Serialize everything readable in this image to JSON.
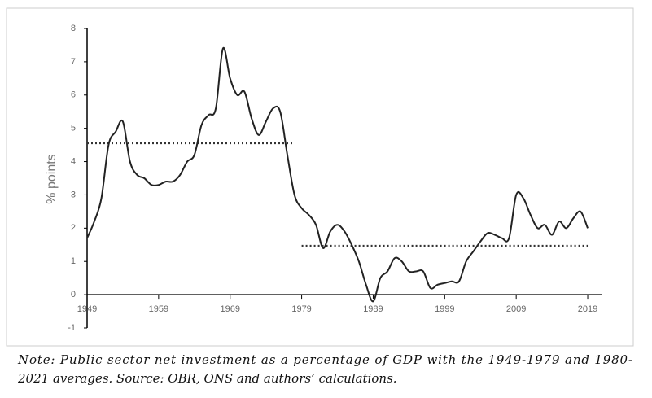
{
  "chart_data": {
    "type": "line",
    "y_label": "% points",
    "xlim": [
      1949,
      2021
    ],
    "xticks": [
      1949,
      1959,
      1969,
      1979,
      1989,
      1999,
      2009,
      2019
    ],
    "ylim": [
      -1,
      8
    ],
    "yticks": [
      -1,
      0,
      1,
      2,
      3,
      4,
      5,
      6,
      7,
      8
    ],
    "x": [
      1949,
      1950,
      1951,
      1952,
      1953,
      1954,
      1955,
      1956,
      1957,
      1958,
      1959,
      1960,
      1961,
      1962,
      1963,
      1964,
      1965,
      1966,
      1967,
      1968,
      1969,
      1970,
      1971,
      1972,
      1973,
      1974,
      1975,
      1976,
      1977,
      1978,
      1979,
      1980,
      1981,
      1982,
      1983,
      1984,
      1985,
      1986,
      1987,
      1988,
      1989,
      1990,
      1991,
      1992,
      1993,
      1994,
      1995,
      1996,
      1997,
      1998,
      1999,
      2000,
      2001,
      2002,
      2003,
      2004,
      2005,
      2006,
      2007,
      2008,
      2009,
      2010,
      2011,
      2012,
      2013,
      2014,
      2015,
      2016,
      2017,
      2018,
      2019
    ],
    "series": [
      {
        "color": "#222222",
        "values": [
          1.7,
          2.2,
          2.9,
          4.5,
          4.9,
          5.2,
          4.0,
          3.6,
          3.5,
          3.3,
          3.3,
          3.4,
          3.4,
          3.6,
          4.0,
          4.2,
          5.1,
          5.4,
          5.6,
          7.4,
          6.5,
          6.0,
          6.1,
          5.3,
          4.8,
          5.2,
          5.6,
          5.5,
          4.2,
          3.0,
          2.6,
          2.4,
          2.1,
          1.4,
          1.9,
          2.1,
          1.9,
          1.5,
          1.0,
          0.3,
          -0.2,
          0.5,
          0.7,
          1.1,
          1.0,
          0.7,
          0.7,
          0.7,
          0.2,
          0.3,
          0.35,
          0.4,
          0.4,
          1.0,
          1.3,
          1.6,
          1.85,
          1.8,
          1.7,
          1.7,
          3.0,
          2.9,
          2.4,
          2.0,
          2.1,
          1.8,
          2.2,
          2.0,
          2.3,
          2.5,
          2.0
        ]
      }
    ],
    "averages": [
      {
        "start": 1949,
        "end": 1978,
        "value": 4.55
      },
      {
        "start": 1979,
        "end": 2019,
        "value": 1.47
      }
    ],
    "note_lines": [
      "Note: Public sector net investment as a percentage of GDP with the 1949-1979 and 1980-",
      "2021 averages. Source: OBR, ONS and authors’ calculations."
    ]
  }
}
